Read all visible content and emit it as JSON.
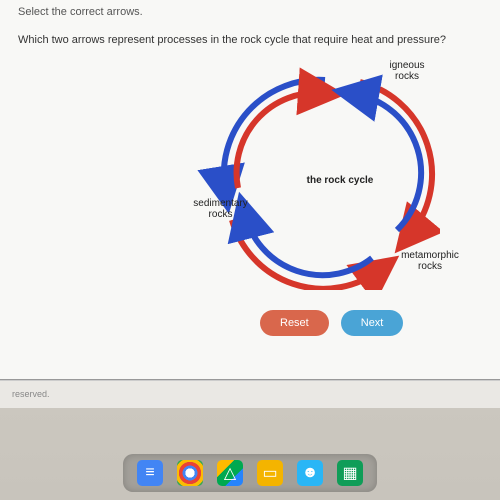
{
  "instruction": "Select the correct arrows.",
  "question": "Which two arrows represent processes in the rock cycle that require heat and pressure?",
  "diagram": {
    "title": "the rock cycle",
    "labels": {
      "igneous": "igneous\nrocks",
      "sedimentary": "sedimentary\nrocks",
      "metamorphic": "metamorphic\nrocks"
    },
    "colors": {
      "blue": "#2a4fc8",
      "red": "#d6362a"
    },
    "arrows": [
      {
        "from": "igneous",
        "to": "sedimentary",
        "color": "blue",
        "side": "outer"
      },
      {
        "from": "sedimentary",
        "to": "igneous",
        "color": "red",
        "side": "inner"
      },
      {
        "from": "igneous",
        "to": "metamorphic",
        "color": "red",
        "side": "outer"
      },
      {
        "from": "metamorphic",
        "to": "igneous",
        "color": "blue",
        "side": "inner"
      },
      {
        "from": "sedimentary",
        "to": "metamorphic",
        "color": "red",
        "side": "outer"
      },
      {
        "from": "metamorphic",
        "to": "sedimentary",
        "color": "blue",
        "side": "inner"
      }
    ]
  },
  "buttons": {
    "reset": "Reset",
    "next": "Next"
  },
  "footer": "reserved.",
  "dock": {
    "icons": [
      {
        "name": "docs-icon",
        "color": "#4285f4",
        "glyph": "▭"
      },
      {
        "name": "chrome-icon",
        "color": "#ffffff",
        "glyph": "◉"
      },
      {
        "name": "drive-icon",
        "color": "#ffba00",
        "glyph": "▲"
      },
      {
        "name": "slides-icon",
        "color": "#f4b400",
        "glyph": "▭"
      },
      {
        "name": "contacts-icon",
        "color": "#29b6f6",
        "glyph": "☻"
      },
      {
        "name": "sheets-icon",
        "color": "#0f9d58",
        "glyph": "▦"
      }
    ]
  }
}
